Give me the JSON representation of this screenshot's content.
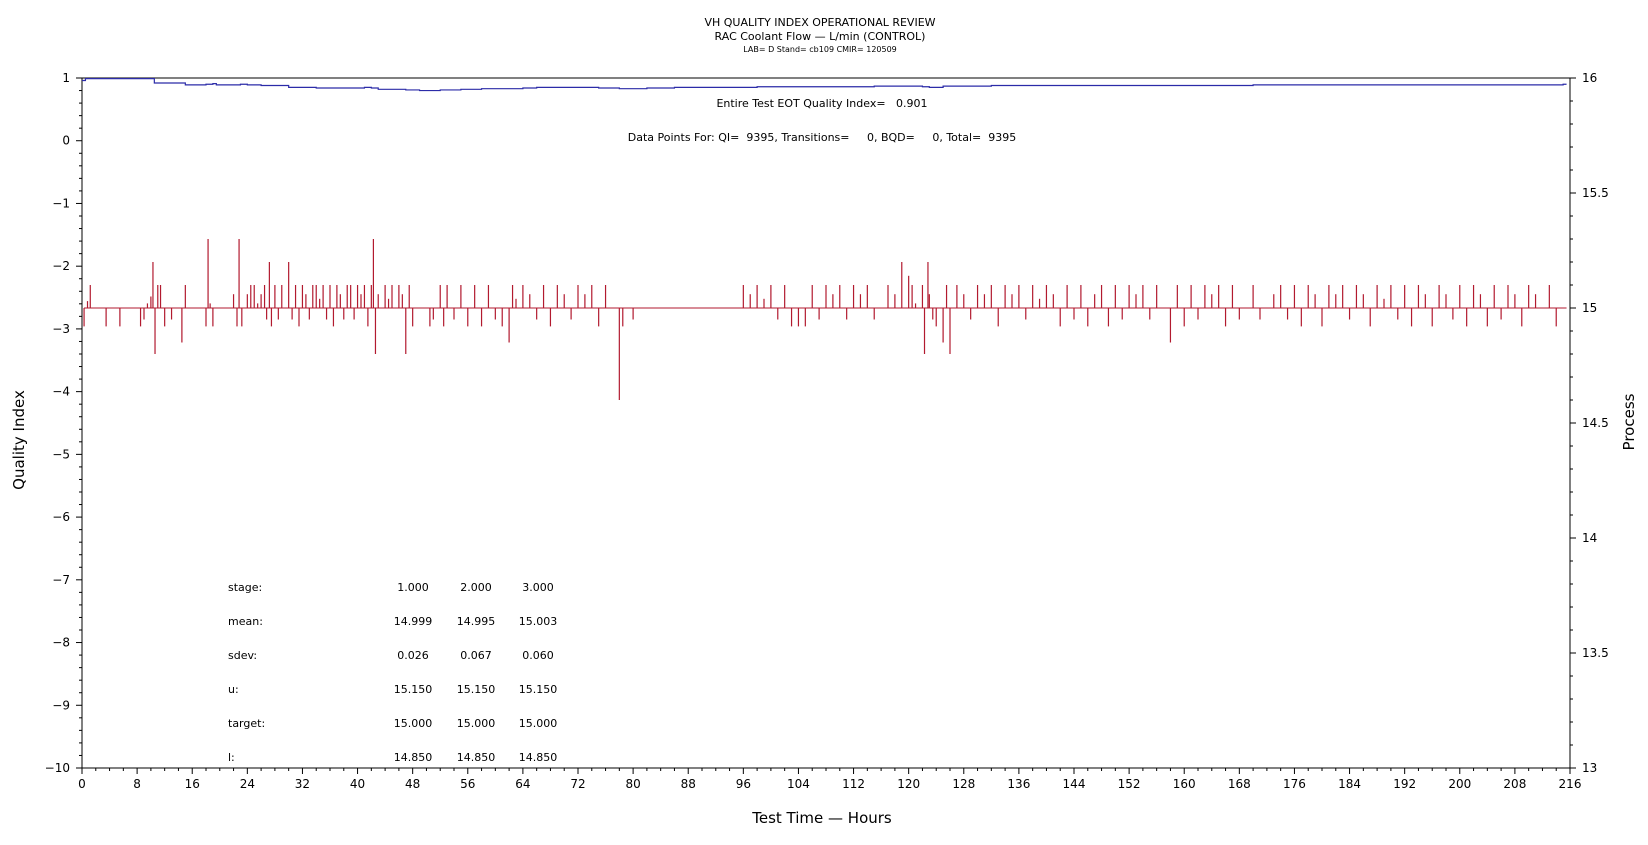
{
  "chart_data": {
    "type": "line",
    "title": "VH QUALITY INDEX OPERATIONAL REVIEW",
    "subtitle": "RAC Coolant Flow — L/min (CONTROL)",
    "subtitle2": "LAB= D Stand= cb109 CMIR= 120509",
    "xlabel": "Test Time — Hours",
    "ylabel_left": "Quality Index",
    "ylabel_right": "Process",
    "xlim": [
      0,
      216
    ],
    "ylim_left": [
      -10,
      1
    ],
    "ylim_right": [
      13,
      16
    ],
    "x_ticks": [
      "0",
      "8",
      "16",
      "24",
      "32",
      "40",
      "48",
      "56",
      "64",
      "72",
      "80",
      "88",
      "96",
      "104",
      "112",
      "120",
      "128",
      "136",
      "144",
      "152",
      "160",
      "168",
      "176",
      "184",
      "192",
      "200",
      "208",
      "216"
    ],
    "y_left_ticks": [
      "1",
      "0",
      "−1",
      "−2",
      "−3",
      "−4",
      "−5",
      "−6",
      "−7",
      "−8",
      "−9",
      "−10"
    ],
    "y_right_ticks": [
      "16",
      "15.5",
      "15",
      "14.5",
      "14",
      "13.5",
      "13"
    ],
    "annotation_eot": "Entire Test EOT Quality Index=   0.901",
    "annotation_points": "Data Points For: QI=  9395, Transitions=     0, BQD=     0, Total=  9395",
    "series": [
      {
        "name": "",
        "axis": "left",
        "color": "#2b2ba8",
        "points": [
          [
            0,
            0.96
          ],
          [
            0.5,
            0.99
          ],
          [
            10,
            0.99
          ],
          [
            10.5,
            0.92
          ],
          [
            14,
            0.92
          ],
          [
            15,
            0.89
          ],
          [
            18,
            0.9
          ],
          [
            19,
            0.91
          ],
          [
            19.5,
            0.89
          ],
          [
            22,
            0.89
          ],
          [
            23,
            0.9
          ],
          [
            24,
            0.89
          ],
          [
            26,
            0.88
          ],
          [
            28,
            0.88
          ],
          [
            30,
            0.85
          ],
          [
            32,
            0.85
          ],
          [
            34,
            0.84
          ],
          [
            40,
            0.84
          ],
          [
            41,
            0.85
          ],
          [
            42,
            0.84
          ],
          [
            43,
            0.82
          ],
          [
            47,
            0.81
          ],
          [
            49,
            0.8
          ],
          [
            52,
            0.81
          ],
          [
            55,
            0.82
          ],
          [
            58,
            0.83
          ],
          [
            64,
            0.84
          ],
          [
            66,
            0.85
          ],
          [
            72,
            0.85
          ],
          [
            75,
            0.84
          ],
          [
            78,
            0.83
          ],
          [
            82,
            0.84
          ],
          [
            86,
            0.85
          ],
          [
            92,
            0.85
          ],
          [
            98,
            0.86
          ],
          [
            104,
            0.86
          ],
          [
            110,
            0.86
          ],
          [
            115,
            0.87
          ],
          [
            118,
            0.87
          ],
          [
            122,
            0.86
          ],
          [
            123,
            0.85
          ],
          [
            125,
            0.87
          ],
          [
            130,
            0.87
          ],
          [
            132,
            0.88
          ],
          [
            140,
            0.88
          ],
          [
            150,
            0.88
          ],
          [
            165,
            0.88
          ],
          [
            170,
            0.89
          ],
          [
            180,
            0.89
          ],
          [
            190,
            0.89
          ],
          [
            200,
            0.89
          ],
          [
            210,
            0.89
          ],
          [
            215,
            0.9
          ]
        ]
      },
      {
        "name": "",
        "axis": "right",
        "color": "#b21a2f",
        "baseline": 15.0,
        "spikes": [
          [
            0.3,
            14.92
          ],
          [
            0.8,
            15.03
          ],
          [
            1.2,
            15.1
          ],
          [
            3.5,
            14.92
          ],
          [
            5.5,
            14.92
          ],
          [
            8.5,
            14.92
          ],
          [
            9,
            14.95
          ],
          [
            9.5,
            15.02
          ],
          [
            10,
            15.05
          ],
          [
            10.3,
            15.2
          ],
          [
            10.6,
            14.8
          ],
          [
            11,
            15.1
          ],
          [
            11.4,
            15.1
          ],
          [
            12,
            14.92
          ],
          [
            13,
            14.95
          ],
          [
            14.5,
            14.85
          ],
          [
            15,
            15.1
          ],
          [
            18,
            14.92
          ],
          [
            18.3,
            15.3
          ],
          [
            18.6,
            15.02
          ],
          [
            19,
            14.92
          ],
          [
            20,
            15.0
          ],
          [
            22,
            15.06
          ],
          [
            22.5,
            14.92
          ],
          [
            22.8,
            15.3
          ],
          [
            23.2,
            14.92
          ],
          [
            24,
            15.06
          ],
          [
            24.5,
            15.1
          ],
          [
            25,
            15.1
          ],
          [
            25.5,
            15.02
          ],
          [
            26,
            15.06
          ],
          [
            26.5,
            15.1
          ],
          [
            26.8,
            14.95
          ],
          [
            27.2,
            15.2
          ],
          [
            27.5,
            14.92
          ],
          [
            28,
            15.1
          ],
          [
            28.5,
            14.95
          ],
          [
            29,
            15.1
          ],
          [
            29.5,
            15.0
          ],
          [
            30,
            15.2
          ],
          [
            30.5,
            14.95
          ],
          [
            31,
            15.1
          ],
          [
            31.5,
            14.92
          ],
          [
            32,
            15.1
          ],
          [
            32.5,
            15.06
          ],
          [
            33,
            14.95
          ],
          [
            33.5,
            15.1
          ],
          [
            34,
            15.1
          ],
          [
            34.5,
            15.04
          ],
          [
            35,
            15.1
          ],
          [
            35.5,
            14.95
          ],
          [
            36,
            15.1
          ],
          [
            36.5,
            14.92
          ],
          [
            37,
            15.1
          ],
          [
            37.5,
            15.06
          ],
          [
            38,
            14.95
          ],
          [
            38.5,
            15.1
          ],
          [
            39,
            15.1
          ],
          [
            39.5,
            14.95
          ],
          [
            40,
            15.1
          ],
          [
            40.5,
            15.06
          ],
          [
            41,
            15.1
          ],
          [
            41.5,
            14.92
          ],
          [
            42,
            15.1
          ],
          [
            42.3,
            15.3
          ],
          [
            42.6,
            14.8
          ],
          [
            43,
            15.06
          ],
          [
            44,
            15.1
          ],
          [
            44.5,
            15.04
          ],
          [
            45,
            15.1
          ],
          [
            45.5,
            15.0
          ],
          [
            46,
            15.1
          ],
          [
            46.5,
            15.06
          ],
          [
            47,
            14.8
          ],
          [
            47.5,
            15.1
          ],
          [
            48,
            14.92
          ],
          [
            50,
            15.0
          ],
          [
            50.5,
            14.92
          ],
          [
            51,
            14.95
          ],
          [
            52,
            15.1
          ],
          [
            52.5,
            14.92
          ],
          [
            53,
            15.1
          ],
          [
            54,
            14.95
          ],
          [
            55,
            15.1
          ],
          [
            56,
            14.92
          ],
          [
            57,
            15.1
          ],
          [
            58,
            14.92
          ],
          [
            59,
            15.1
          ],
          [
            60,
            14.95
          ],
          [
            61,
            14.92
          ],
          [
            62,
            14.85
          ],
          [
            62.5,
            15.1
          ],
          [
            63,
            15.04
          ],
          [
            64,
            15.1
          ],
          [
            65,
            15.06
          ],
          [
            66,
            14.95
          ],
          [
            67,
            15.1
          ],
          [
            68,
            14.92
          ],
          [
            69,
            15.1
          ],
          [
            70,
            15.06
          ],
          [
            71,
            14.95
          ],
          [
            72,
            15.1
          ],
          [
            73,
            15.06
          ],
          [
            74,
            15.1
          ],
          [
            75,
            14.92
          ],
          [
            76,
            15.1
          ],
          [
            77,
            15.0
          ],
          [
            78,
            14.6
          ],
          [
            78.5,
            14.92
          ],
          [
            79,
            15.0
          ],
          [
            80,
            14.95
          ],
          [
            81,
            15.0
          ],
          [
            83,
            15.0
          ],
          [
            85,
            15.0
          ],
          [
            87,
            15.0
          ],
          [
            90,
            15.0
          ],
          [
            95,
            15.0
          ],
          [
            96,
            15.1
          ],
          [
            97,
            15.06
          ],
          [
            98,
            15.1
          ],
          [
            99,
            15.04
          ],
          [
            100,
            15.1
          ],
          [
            101,
            14.95
          ],
          [
            102,
            15.1
          ],
          [
            103,
            14.92
          ],
          [
            104,
            14.92
          ],
          [
            105,
            14.92
          ],
          [
            106,
            15.1
          ],
          [
            107,
            14.95
          ],
          [
            108,
            15.1
          ],
          [
            109,
            15.06
          ],
          [
            110,
            15.1
          ],
          [
            111,
            14.95
          ],
          [
            112,
            15.1
          ],
          [
            113,
            15.06
          ],
          [
            114,
            15.1
          ],
          [
            115,
            14.95
          ],
          [
            116,
            15.0
          ],
          [
            117,
            15.1
          ],
          [
            118,
            15.06
          ],
          [
            119,
            15.2
          ],
          [
            120,
            15.14
          ],
          [
            120.5,
            15.1
          ],
          [
            121,
            15.02
          ],
          [
            122,
            15.1
          ],
          [
            122.3,
            14.8
          ],
          [
            122.8,
            15.2
          ],
          [
            123,
            15.06
          ],
          [
            123.5,
            14.95
          ],
          [
            124,
            14.92
          ],
          [
            125,
            14.85
          ],
          [
            125.5,
            15.1
          ],
          [
            126,
            14.8
          ],
          [
            126.5,
            15.0
          ],
          [
            127,
            15.1
          ],
          [
            128,
            15.06
          ],
          [
            129,
            14.95
          ],
          [
            130,
            15.1
          ],
          [
            131,
            15.06
          ],
          [
            132,
            15.1
          ],
          [
            133,
            14.92
          ],
          [
            134,
            15.1
          ],
          [
            135,
            15.06
          ],
          [
            136,
            15.1
          ],
          [
            137,
            14.95
          ],
          [
            138,
            15.1
          ],
          [
            139,
            15.04
          ],
          [
            140,
            15.1
          ],
          [
            141,
            15.06
          ],
          [
            142,
            14.92
          ],
          [
            143,
            15.1
          ],
          [
            144,
            14.95
          ],
          [
            145,
            15.1
          ],
          [
            146,
            14.92
          ],
          [
            147,
            15.06
          ],
          [
            148,
            15.1
          ],
          [
            149,
            14.92
          ],
          [
            150,
            15.1
          ],
          [
            151,
            14.95
          ],
          [
            152,
            15.1
          ],
          [
            153,
            15.06
          ],
          [
            154,
            15.1
          ],
          [
            155,
            14.95
          ],
          [
            156,
            15.1
          ],
          [
            157,
            15.0
          ],
          [
            158,
            14.85
          ],
          [
            159,
            15.1
          ],
          [
            160,
            14.92
          ],
          [
            161,
            15.1
          ],
          [
            162,
            14.95
          ],
          [
            163,
            15.1
          ],
          [
            164,
            15.06
          ],
          [
            165,
            15.1
          ],
          [
            166,
            14.92
          ],
          [
            167,
            15.1
          ],
          [
            168,
            14.95
          ],
          [
            169,
            15.0
          ],
          [
            170,
            15.1
          ],
          [
            171,
            14.95
          ],
          [
            172,
            15.0
          ],
          [
            173,
            15.06
          ],
          [
            174,
            15.1
          ],
          [
            175,
            14.95
          ],
          [
            176,
            15.1
          ],
          [
            177,
            14.92
          ],
          [
            178,
            15.1
          ],
          [
            179,
            15.06
          ],
          [
            180,
            14.92
          ],
          [
            181,
            15.1
          ],
          [
            182,
            15.06
          ],
          [
            183,
            15.1
          ],
          [
            184,
            14.95
          ],
          [
            185,
            15.1
          ],
          [
            186,
            15.06
          ],
          [
            187,
            14.92
          ],
          [
            188,
            15.1
          ],
          [
            189,
            15.04
          ],
          [
            190,
            15.1
          ],
          [
            191,
            14.95
          ],
          [
            192,
            15.1
          ],
          [
            193,
            14.92
          ],
          [
            194,
            15.1
          ],
          [
            195,
            15.06
          ],
          [
            196,
            14.92
          ],
          [
            197,
            15.1
          ],
          [
            198,
            15.06
          ],
          [
            199,
            14.95
          ],
          [
            200,
            15.1
          ],
          [
            201,
            14.92
          ],
          [
            202,
            15.1
          ],
          [
            203,
            15.06
          ],
          [
            204,
            14.92
          ],
          [
            205,
            15.1
          ],
          [
            206,
            14.95
          ],
          [
            207,
            15.1
          ],
          [
            208,
            15.06
          ],
          [
            209,
            14.92
          ],
          [
            210,
            15.1
          ],
          [
            211,
            15.06
          ],
          [
            212,
            15.0
          ],
          [
            213,
            15.1
          ],
          [
            214,
            14.92
          ],
          [
            215,
            15.0
          ]
        ]
      }
    ],
    "stats_table": {
      "header_label": "stage:",
      "stages": [
        "1.000",
        "2.000",
        "3.000"
      ],
      "rows": [
        {
          "label": "mean:",
          "values": [
            "14.999",
            "14.995",
            "15.003"
          ]
        },
        {
          "label": "sdev:",
          "values": [
            "0.026",
            "0.067",
            "0.060"
          ]
        },
        {
          "label": "u:",
          "values": [
            "15.150",
            "15.150",
            "15.150"
          ]
        },
        {
          "label": "target:",
          "values": [
            "15.000",
            "15.000",
            "15.000"
          ]
        },
        {
          "label": "l:",
          "values": [
            "14.850",
            "14.850",
            "14.850"
          ]
        }
      ]
    }
  }
}
